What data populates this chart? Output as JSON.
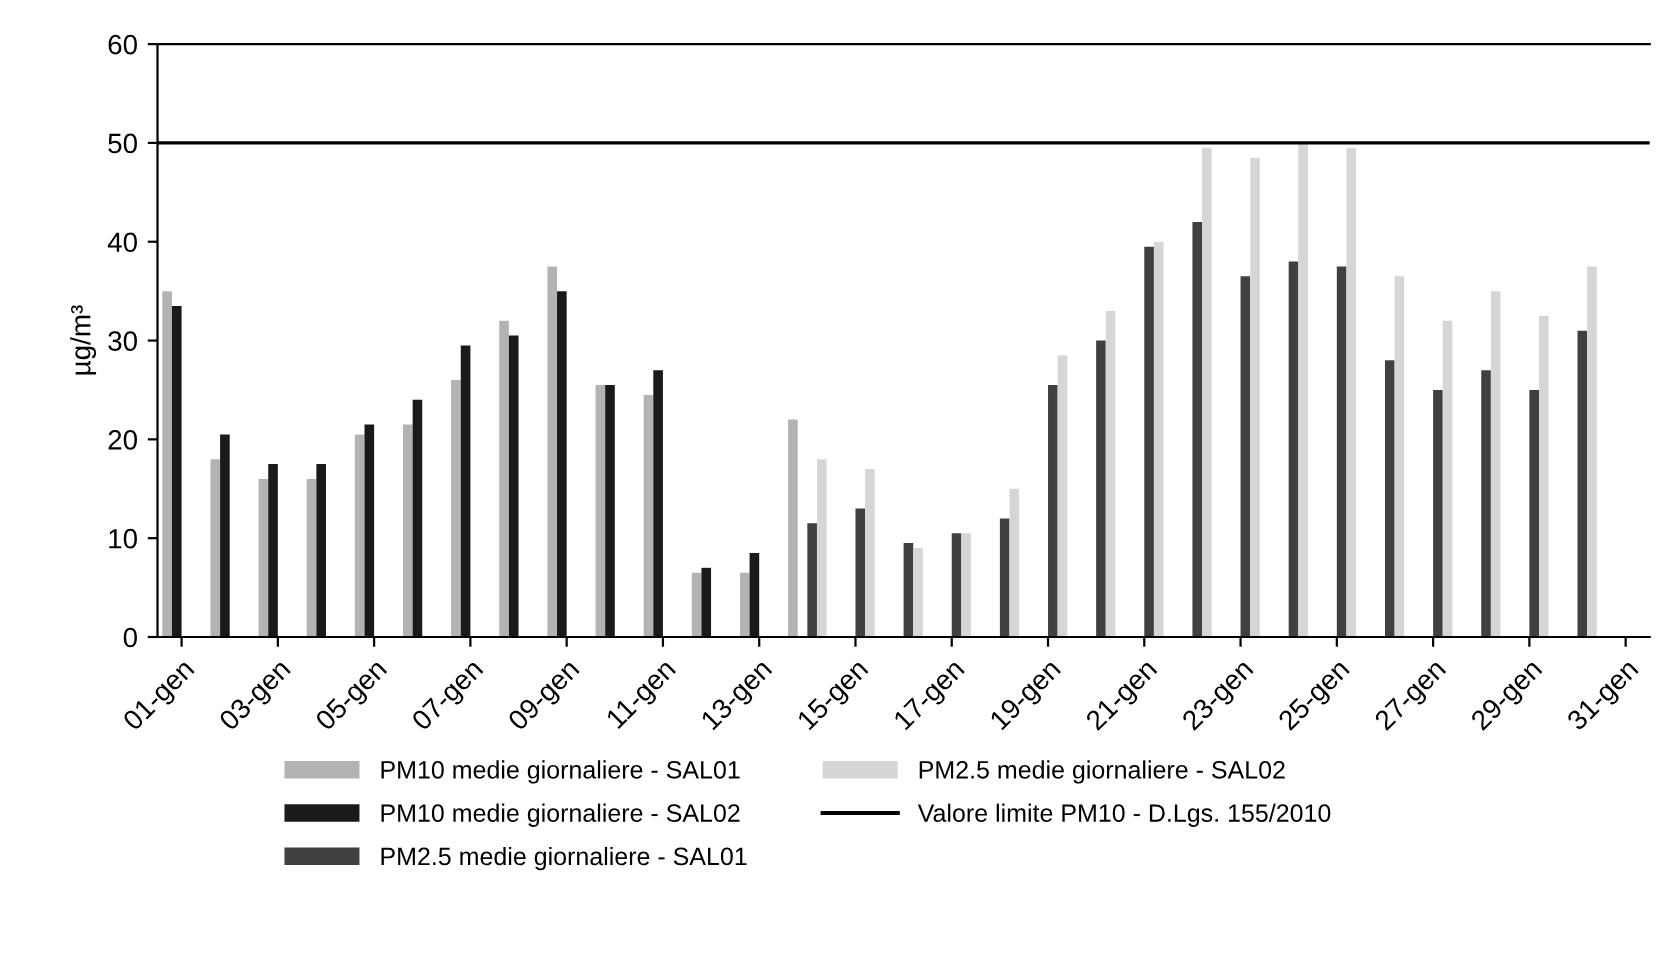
{
  "chart_data": {
    "type": "bar",
    "ylabel": "µg/m³",
    "categories": [
      "01-gen",
      null,
      "03-gen",
      null,
      "05-gen",
      null,
      "07-gen",
      null,
      "09-gen",
      null,
      "11-gen",
      null,
      "13-gen",
      null,
      "15-gen",
      null,
      "17-gen",
      null,
      "19-gen",
      null,
      "21-gen",
      null,
      "23-gen",
      null,
      "25-gen",
      null,
      "27-gen",
      null,
      "29-gen",
      null,
      "31-gen"
    ],
    "series": [
      {
        "name": "PM10 medie giornaliere - SAL01",
        "color": "#b3b3b3",
        "values": [
          35,
          18,
          16,
          16,
          20.5,
          21.5,
          26,
          32,
          37.5,
          25.5,
          24.5,
          6.5,
          6.5,
          22,
          null,
          null,
          null,
          null,
          null,
          null,
          null,
          null,
          null,
          null,
          null,
          null,
          null,
          null,
          null,
          null,
          null
        ]
      },
      {
        "name": "PM10 medie giornaliere - SAL02",
        "color": "#1a1a1a",
        "values": [
          33.5,
          20.5,
          17.5,
          17.5,
          21.5,
          24,
          29.5,
          30.5,
          35,
          25.5,
          27,
          7,
          8.5,
          null,
          null,
          null,
          null,
          null,
          null,
          null,
          null,
          null,
          null,
          null,
          null,
          null,
          null,
          null,
          null,
          null,
          null
        ]
      },
      {
        "name": "PM2.5 medie giornaliere - SAL01",
        "color": "#404040",
        "values": [
          null,
          null,
          null,
          null,
          null,
          null,
          null,
          null,
          null,
          null,
          null,
          null,
          null,
          11.5,
          13,
          9.5,
          10.5,
          12,
          25.5,
          30,
          39.5,
          42,
          36.5,
          38,
          37.5,
          28,
          25,
          27,
          25,
          31,
          null
        ]
      },
      {
        "name": "PM2.5 medie giornaliere - SAL02",
        "color": "#d6d6d6",
        "values": [
          null,
          null,
          null,
          null,
          null,
          null,
          null,
          null,
          null,
          null,
          null,
          null,
          null,
          18,
          17,
          9,
          10.5,
          15,
          28.5,
          33,
          40,
          49.5,
          48.5,
          50,
          49.5,
          36.5,
          32,
          35,
          32.5,
          37.5,
          null
        ]
      }
    ],
    "ylim": [
      0,
      60
    ],
    "yticks": [
      0,
      10,
      20,
      30,
      40,
      50,
      60
    ],
    "ref_lines": [
      {
        "axis": "y",
        "value": 50,
        "label": "Valore limite PM10 - D.Lgs. 155/2010",
        "color": "#000000",
        "line_style": "solid"
      }
    ],
    "legend": "bottom",
    "grid": false
  }
}
